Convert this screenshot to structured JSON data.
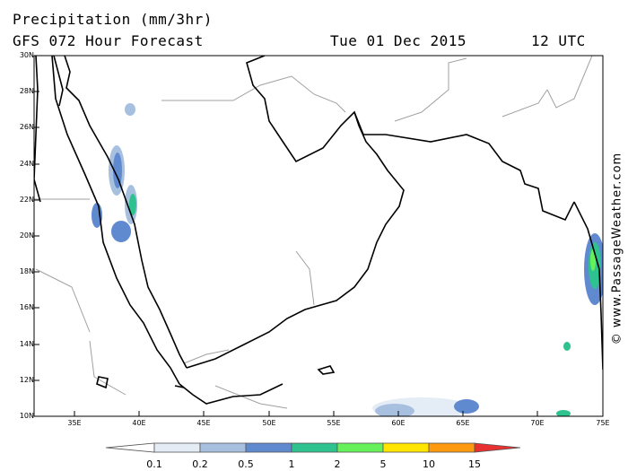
{
  "header": {
    "title": "Precipitation (mm/3hr)",
    "subtitle": "GFS 072 Hour Forecast",
    "date": "Tue 01 Dec 2015",
    "time": "12 UTC"
  },
  "map": {
    "lat_ticks": [
      "30N",
      "28N",
      "26N",
      "24N",
      "22N",
      "20N",
      "18N",
      "16N",
      "14N",
      "12N",
      "10N"
    ],
    "lon_ticks": [
      "35E",
      "40E",
      "45E",
      "50E",
      "55E",
      "60E",
      "65E",
      "70E",
      "75E"
    ],
    "extent": {
      "lon_min": 31.0,
      "lon_max": 75.0,
      "lat_min": 10.0,
      "lat_max": 30.0
    },
    "precipitation_areas": [
      {
        "name": "red-sea-north",
        "lat": 25.0,
        "lon": 38.5,
        "level": "0.5"
      },
      {
        "name": "red-sea-central",
        "lat": 21.5,
        "lon": 38.5,
        "level": "1"
      },
      {
        "name": "red-sea-south-west",
        "lat": 21.0,
        "lon": 36.5,
        "level": "0.5"
      },
      {
        "name": "western-ghats-coast",
        "lat": 18.0,
        "lon": 73.5,
        "level": "2"
      },
      {
        "name": "arabian-sea-south",
        "lat": 10.5,
        "lon": 65.0,
        "level": "0.5"
      }
    ]
  },
  "legend": {
    "labels": [
      "0.1",
      "0.2",
      "0.5",
      "1",
      "2",
      "5",
      "10",
      "15"
    ],
    "colors": [
      "#ffffff",
      "#e4ecf6",
      "#a8c0e0",
      "#5f8ad0",
      "#2ec28e",
      "#66f05a",
      "#ffe500",
      "#ff9a10",
      "#e83030"
    ]
  },
  "credit": "© www.PassageWeather.com"
}
